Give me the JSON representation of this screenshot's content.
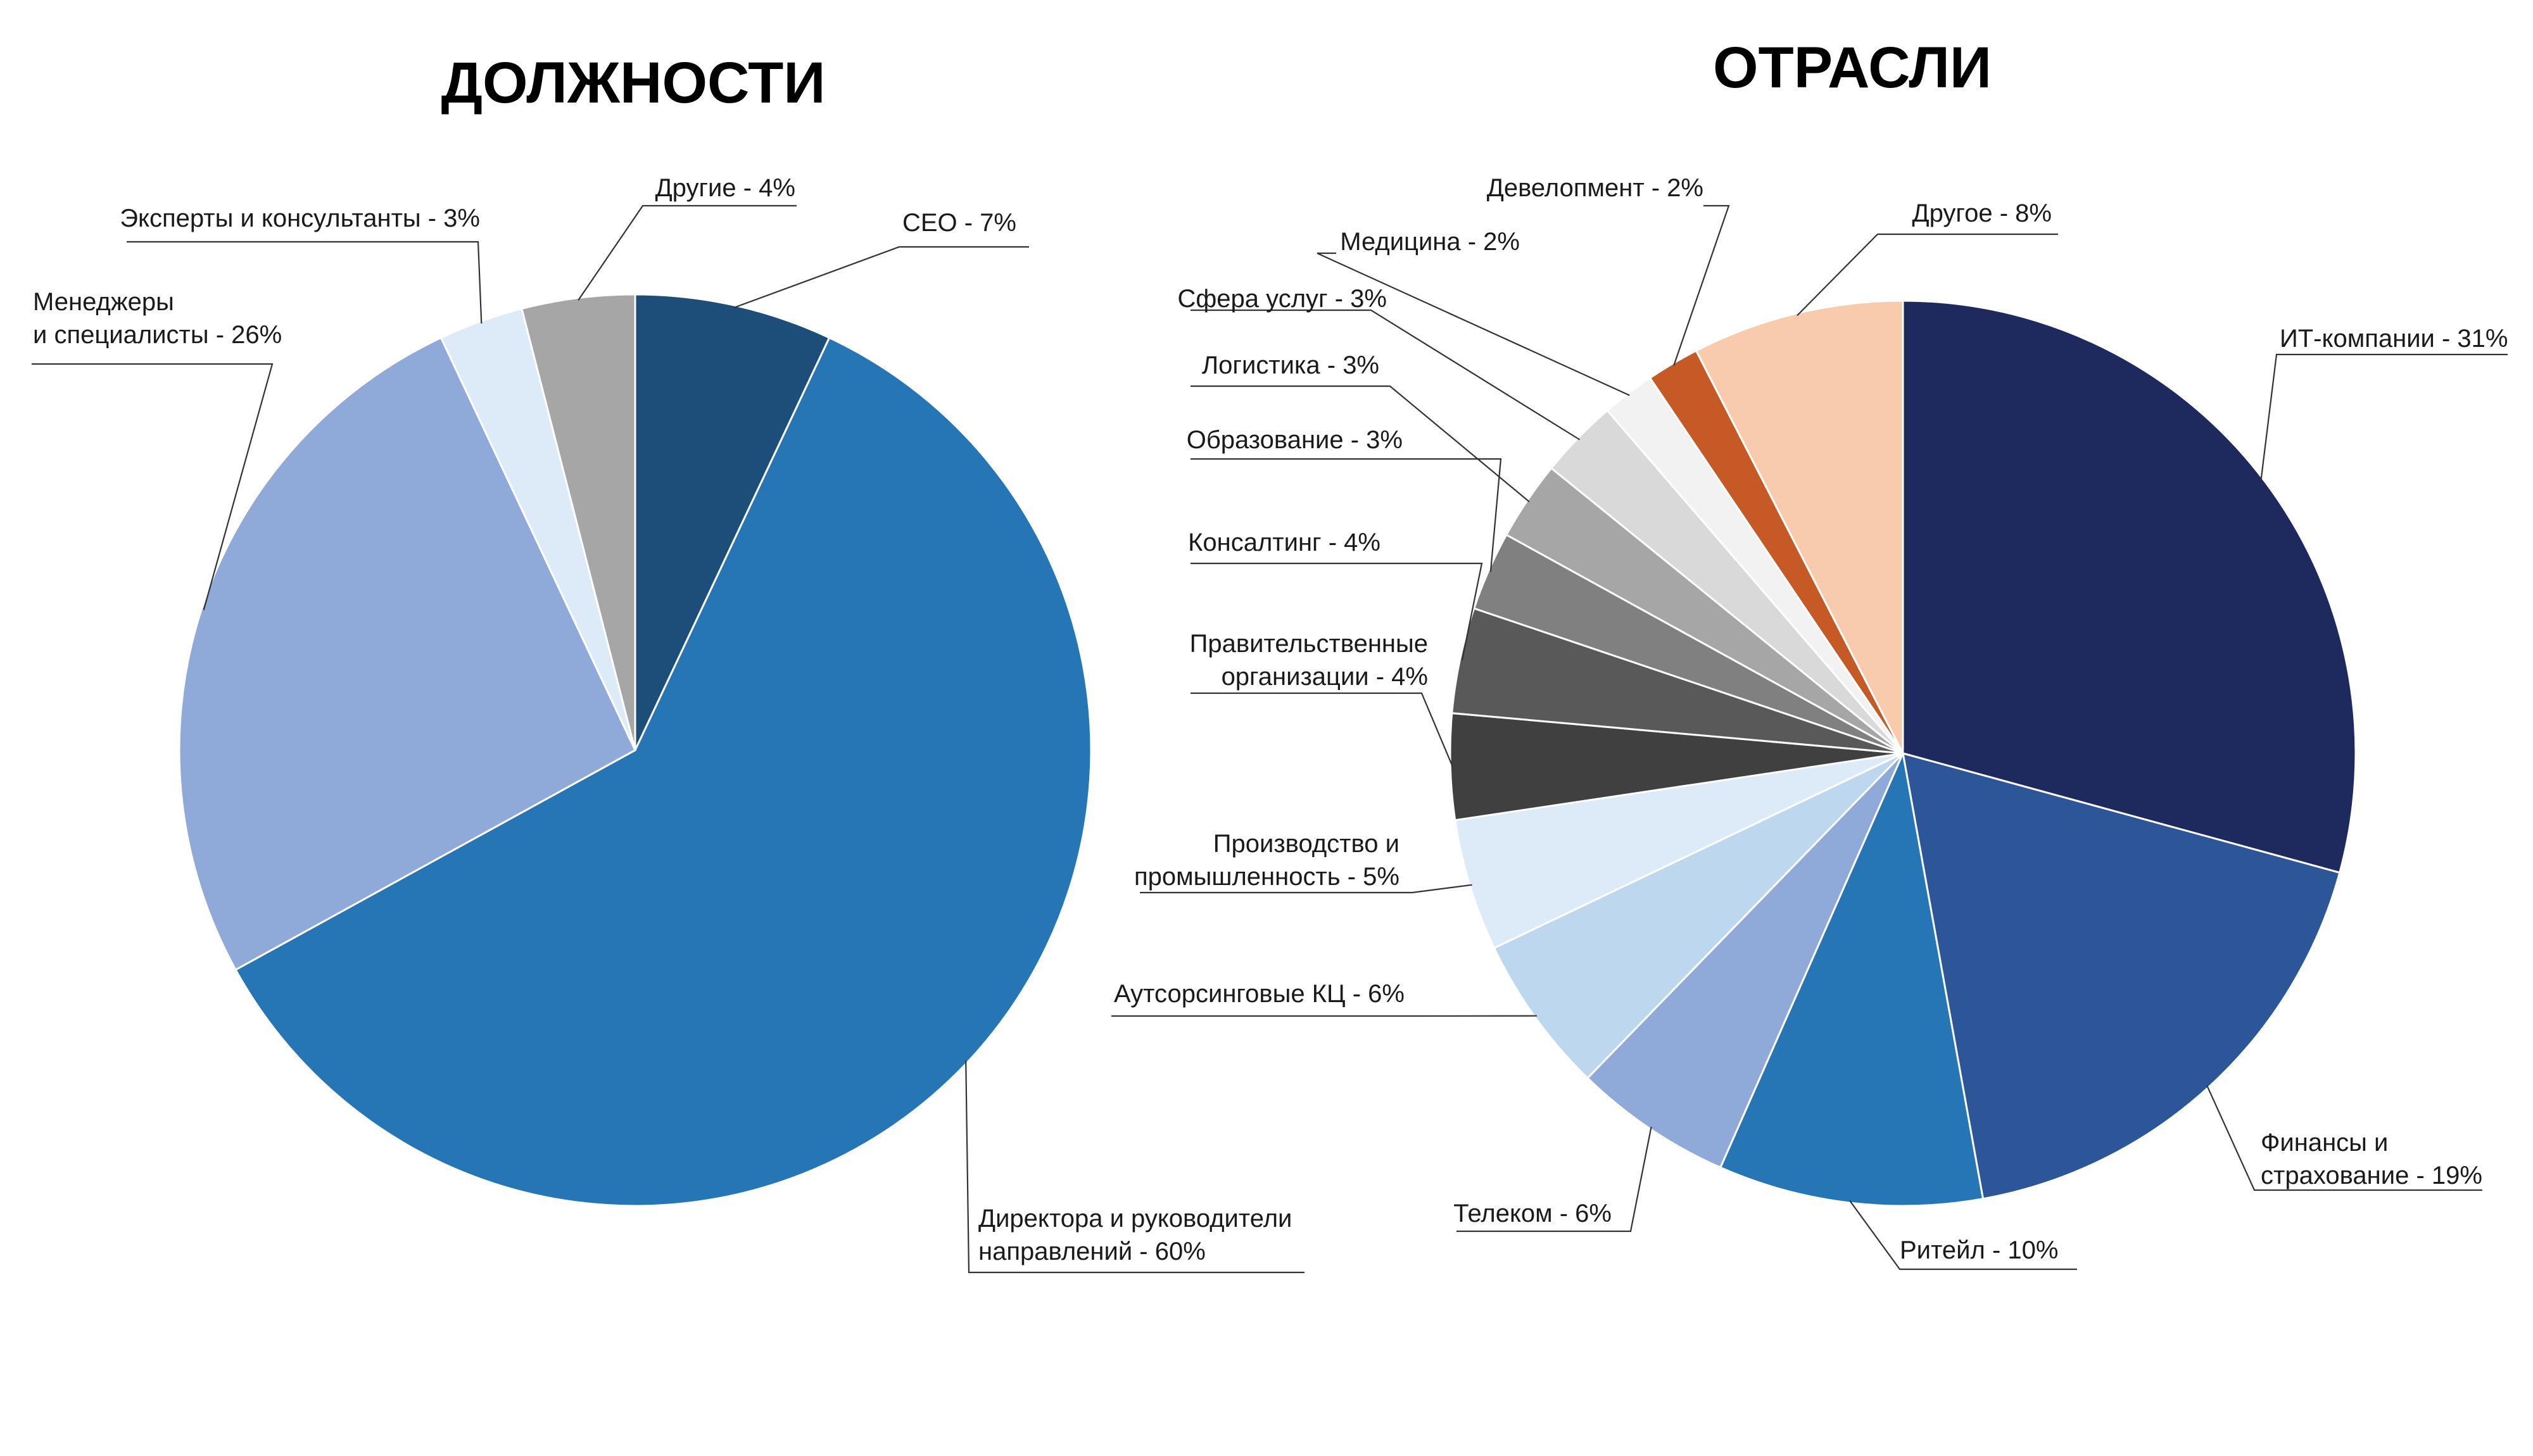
{
  "chart_data": [
    {
      "type": "pie",
      "title": "ДОЛЖНОСТИ",
      "series": [
        {
          "label": [
            "CEO - 7%"
          ],
          "value": 7,
          "color": "#1c4e79"
        },
        {
          "label": [
            "Директора и руководители",
            "направлений - 60%"
          ],
          "value": 60,
          "color": "#2675b5"
        },
        {
          "label": [
            "Менеджеры",
            "и специалисты - 26%"
          ],
          "value": 26,
          "color": "#8fa9d8"
        },
        {
          "label": [
            "Эксперты и консультанты - 3%"
          ],
          "value": 3,
          "color": "#ddeaf7"
        },
        {
          "label": [
            "Другие - 4%"
          ],
          "value": 4,
          "color": "#a6a6a6"
        }
      ]
    },
    {
      "type": "pie",
      "title": "ОТРАСЛИ",
      "series": [
        {
          "label": [
            "ИТ-компании - 31%"
          ],
          "value": 31,
          "color": "#1e2a5e"
        },
        {
          "label": [
            "Финансы и",
            "страхование - 19%"
          ],
          "value": 19,
          "color": "#2c5697"
        },
        {
          "label": [
            "Ритейл - 10%"
          ],
          "value": 10,
          "color": "#2675b5"
        },
        {
          "label": [
            "Телеком - 6%"
          ],
          "value": 6,
          "color": "#8fa9d8"
        },
        {
          "label": [
            "Аутсорсинговые КЦ - 6%"
          ],
          "value": 6,
          "color": "#bdd7ee"
        },
        {
          "label": [
            "Производство и",
            "промышленность - 5%"
          ],
          "value": 5,
          "color": "#ddeaf7"
        },
        {
          "label": [
            "Правительственные",
            "организации - 4%"
          ],
          "value": 4,
          "color": "#404040"
        },
        {
          "label": [
            "Консалтинг - 4%"
          ],
          "value": 4,
          "color": "#595959"
        },
        {
          "label": [
            "Образование - 3%"
          ],
          "value": 3,
          "color": "#808080"
        },
        {
          "label": [
            "Логистика - 3%"
          ],
          "value": 3,
          "color": "#a6a6a6"
        },
        {
          "label": [
            "Сфера услуг - 3%"
          ],
          "value": 3,
          "color": "#d9d9d9"
        },
        {
          "label": [
            "Медицина - 2%"
          ],
          "value": 2,
          "color": "#f2f2f2"
        },
        {
          "label": [
            "Девелопмент - 2%"
          ],
          "value": 2,
          "color": "#c55a26"
        },
        {
          "label": [
            "Другое - 8%"
          ],
          "value": 8,
          "color": "#f8cbad"
        }
      ]
    }
  ]
}
